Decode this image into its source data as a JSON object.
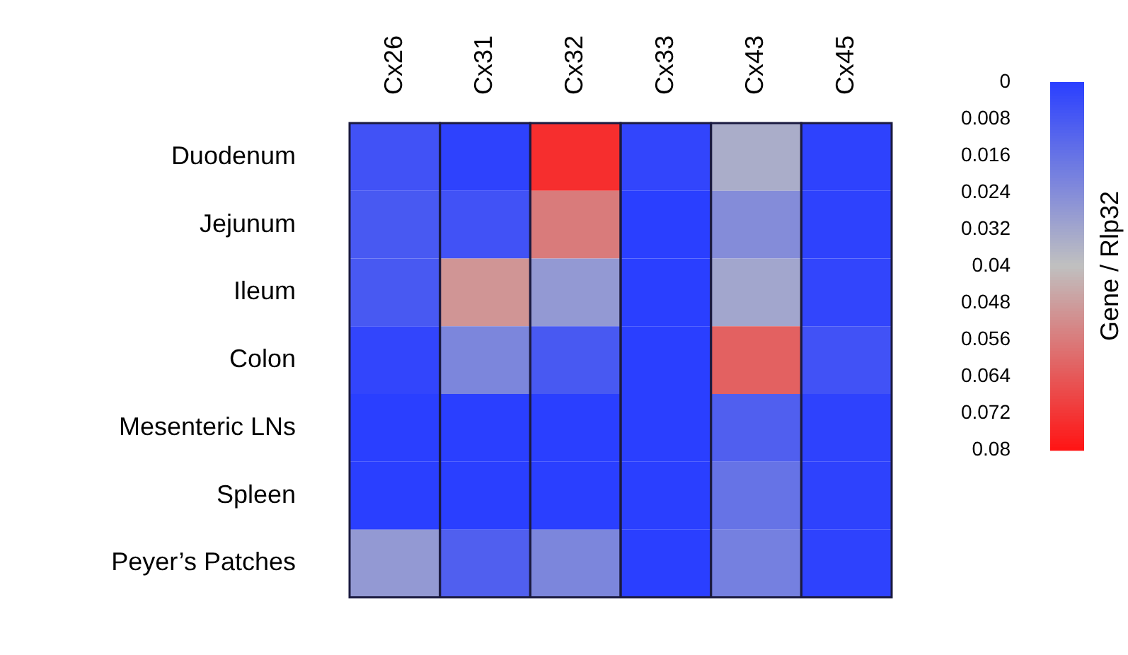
{
  "chart_data": {
    "type": "heatmap",
    "clabel": "Gene / Rlp32",
    "categories": [
      "Cx26",
      "Cx31",
      "Cx32",
      "Cx33",
      "Cx43",
      "Cx45"
    ],
    "y_categories": [
      "Duodenum",
      "Jejunum",
      "Ileum",
      "Colon",
      "Mesenteric LNs",
      "Spleen",
      "Peyer’s Patches"
    ],
    "cells": [
      [
        0.006,
        0.001,
        0.074,
        0.002,
        0.034,
        0.001
      ],
      [
        0.008,
        0.006,
        0.056,
        0,
        0.024,
        0.001
      ],
      [
        0.008,
        0.05,
        0.028,
        0,
        0.032,
        0.002
      ],
      [
        0.002,
        0.022,
        0.008,
        0,
        0.062,
        0.006
      ],
      [
        0,
        0,
        0,
        0,
        0.01,
        0.001
      ],
      [
        0,
        0,
        0,
        0,
        0.016,
        0.001
      ],
      [
        0.028,
        0.01,
        0.022,
        0,
        0.02,
        0.001
      ]
    ],
    "clim": [
      0,
      0.08
    ],
    "cticks": [
      0,
      0.008,
      0.016,
      0.024,
      0.032,
      0.04,
      0.048,
      0.056,
      0.064,
      0.072,
      0.08
    ]
  }
}
